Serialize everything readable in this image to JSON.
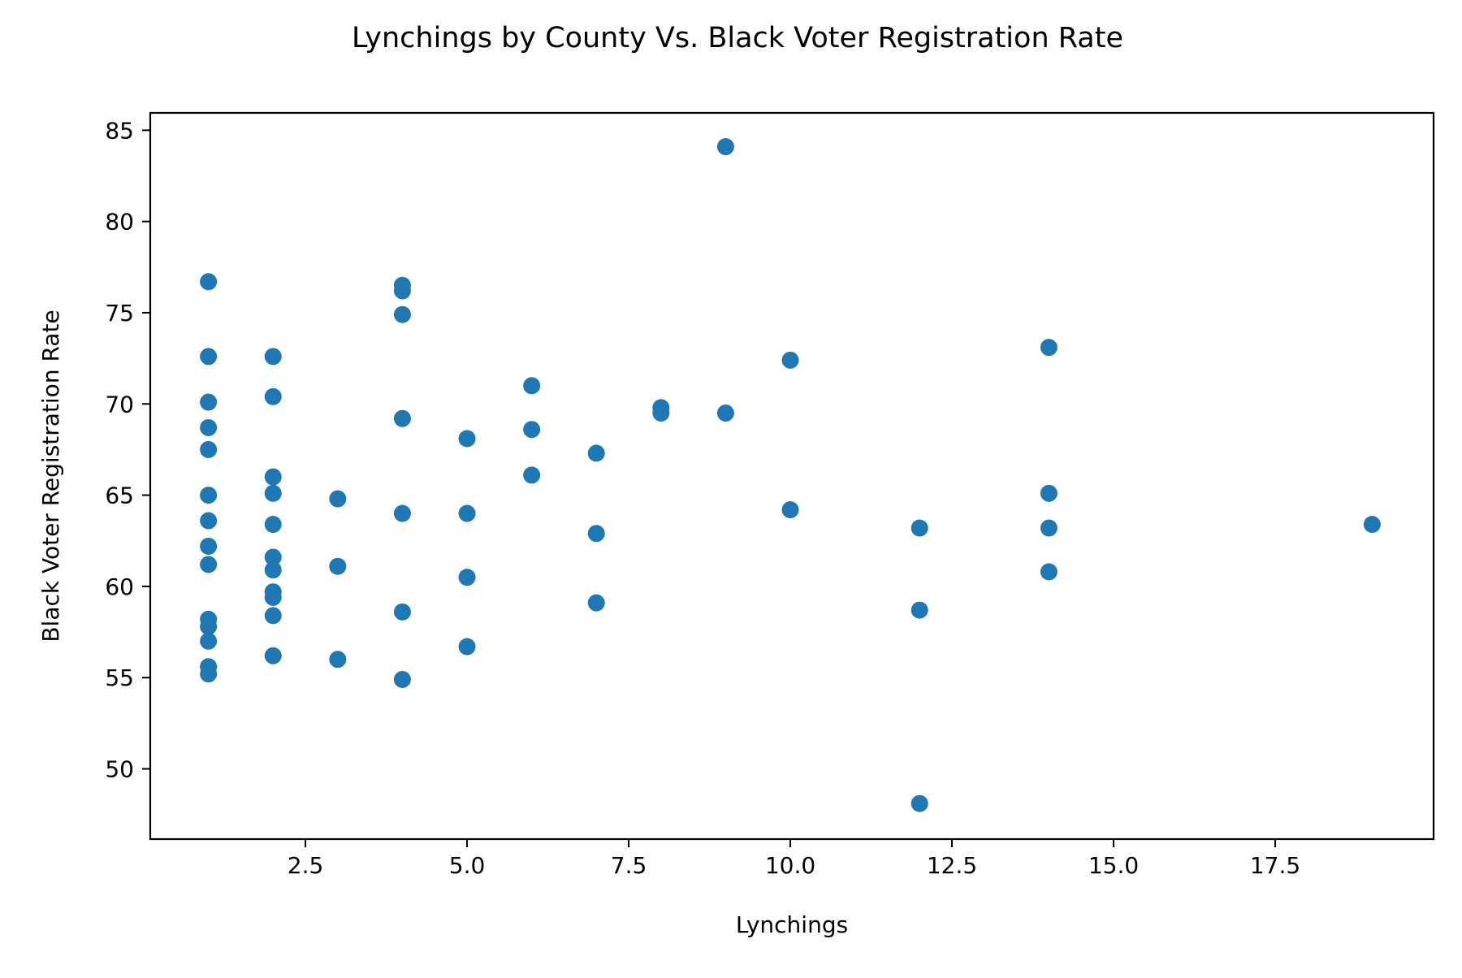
{
  "chart_data": {
    "type": "scatter",
    "title": "Lynchings by County Vs. Black Voter Registration Rate",
    "xlabel": "Lynchings",
    "ylabel": "Black Voter Registration Rate",
    "xlim": [
      0.1,
      19.95
    ],
    "ylim": [
      46.15,
      85.95
    ],
    "xticks": [
      2.5,
      5.0,
      7.5,
      10.0,
      12.5,
      15.0,
      17.5
    ],
    "xtick_labels": [
      "2.5",
      "5.0",
      "7.5",
      "10.0",
      "12.5",
      "15.0",
      "17.5"
    ],
    "yticks": [
      50,
      55,
      60,
      65,
      70,
      75,
      80,
      85
    ],
    "ytick_labels": [
      "50",
      "55",
      "60",
      "65",
      "70",
      "75",
      "80",
      "85"
    ],
    "grid": false,
    "point_color": "#1f77b4",
    "points": [
      {
        "x": 1,
        "y": 76.7
      },
      {
        "x": 1,
        "y": 72.6
      },
      {
        "x": 1,
        "y": 70.1
      },
      {
        "x": 1,
        "y": 68.7
      },
      {
        "x": 1,
        "y": 67.5
      },
      {
        "x": 1,
        "y": 65.0
      },
      {
        "x": 1,
        "y": 63.6
      },
      {
        "x": 1,
        "y": 62.2
      },
      {
        "x": 1,
        "y": 61.2
      },
      {
        "x": 1,
        "y": 58.2
      },
      {
        "x": 1,
        "y": 57.8
      },
      {
        "x": 1,
        "y": 57.0
      },
      {
        "x": 1,
        "y": 55.6
      },
      {
        "x": 1,
        "y": 55.2
      },
      {
        "x": 2,
        "y": 72.6
      },
      {
        "x": 2,
        "y": 70.4
      },
      {
        "x": 2,
        "y": 66.0
      },
      {
        "x": 2,
        "y": 65.1
      },
      {
        "x": 2,
        "y": 63.4
      },
      {
        "x": 2,
        "y": 61.6
      },
      {
        "x": 2,
        "y": 60.9
      },
      {
        "x": 2,
        "y": 59.7
      },
      {
        "x": 2,
        "y": 59.4
      },
      {
        "x": 2,
        "y": 58.4
      },
      {
        "x": 2,
        "y": 56.2
      },
      {
        "x": 3,
        "y": 64.8
      },
      {
        "x": 3,
        "y": 61.1
      },
      {
        "x": 3,
        "y": 56.0
      },
      {
        "x": 4,
        "y": 76.5
      },
      {
        "x": 4,
        "y": 76.2
      },
      {
        "x": 4,
        "y": 74.9
      },
      {
        "x": 4,
        "y": 69.2
      },
      {
        "x": 4,
        "y": 64.0
      },
      {
        "x": 4,
        "y": 58.6
      },
      {
        "x": 4,
        "y": 54.9
      },
      {
        "x": 5,
        "y": 68.1
      },
      {
        "x": 5,
        "y": 64.0
      },
      {
        "x": 5,
        "y": 60.5
      },
      {
        "x": 5,
        "y": 56.7
      },
      {
        "x": 6,
        "y": 71.0
      },
      {
        "x": 6,
        "y": 68.6
      },
      {
        "x": 6,
        "y": 66.1
      },
      {
        "x": 7,
        "y": 67.3
      },
      {
        "x": 7,
        "y": 62.9
      },
      {
        "x": 7,
        "y": 59.1
      },
      {
        "x": 8,
        "y": 69.8
      },
      {
        "x": 8,
        "y": 69.5
      },
      {
        "x": 9,
        "y": 84.1
      },
      {
        "x": 9,
        "y": 69.5
      },
      {
        "x": 10,
        "y": 72.4
      },
      {
        "x": 10,
        "y": 64.2
      },
      {
        "x": 12,
        "y": 63.2
      },
      {
        "x": 12,
        "y": 58.7
      },
      {
        "x": 12,
        "y": 48.1
      },
      {
        "x": 14,
        "y": 73.1
      },
      {
        "x": 14,
        "y": 65.1
      },
      {
        "x": 14,
        "y": 63.2
      },
      {
        "x": 14,
        "y": 60.8
      },
      {
        "x": 19,
        "y": 63.4
      }
    ]
  }
}
